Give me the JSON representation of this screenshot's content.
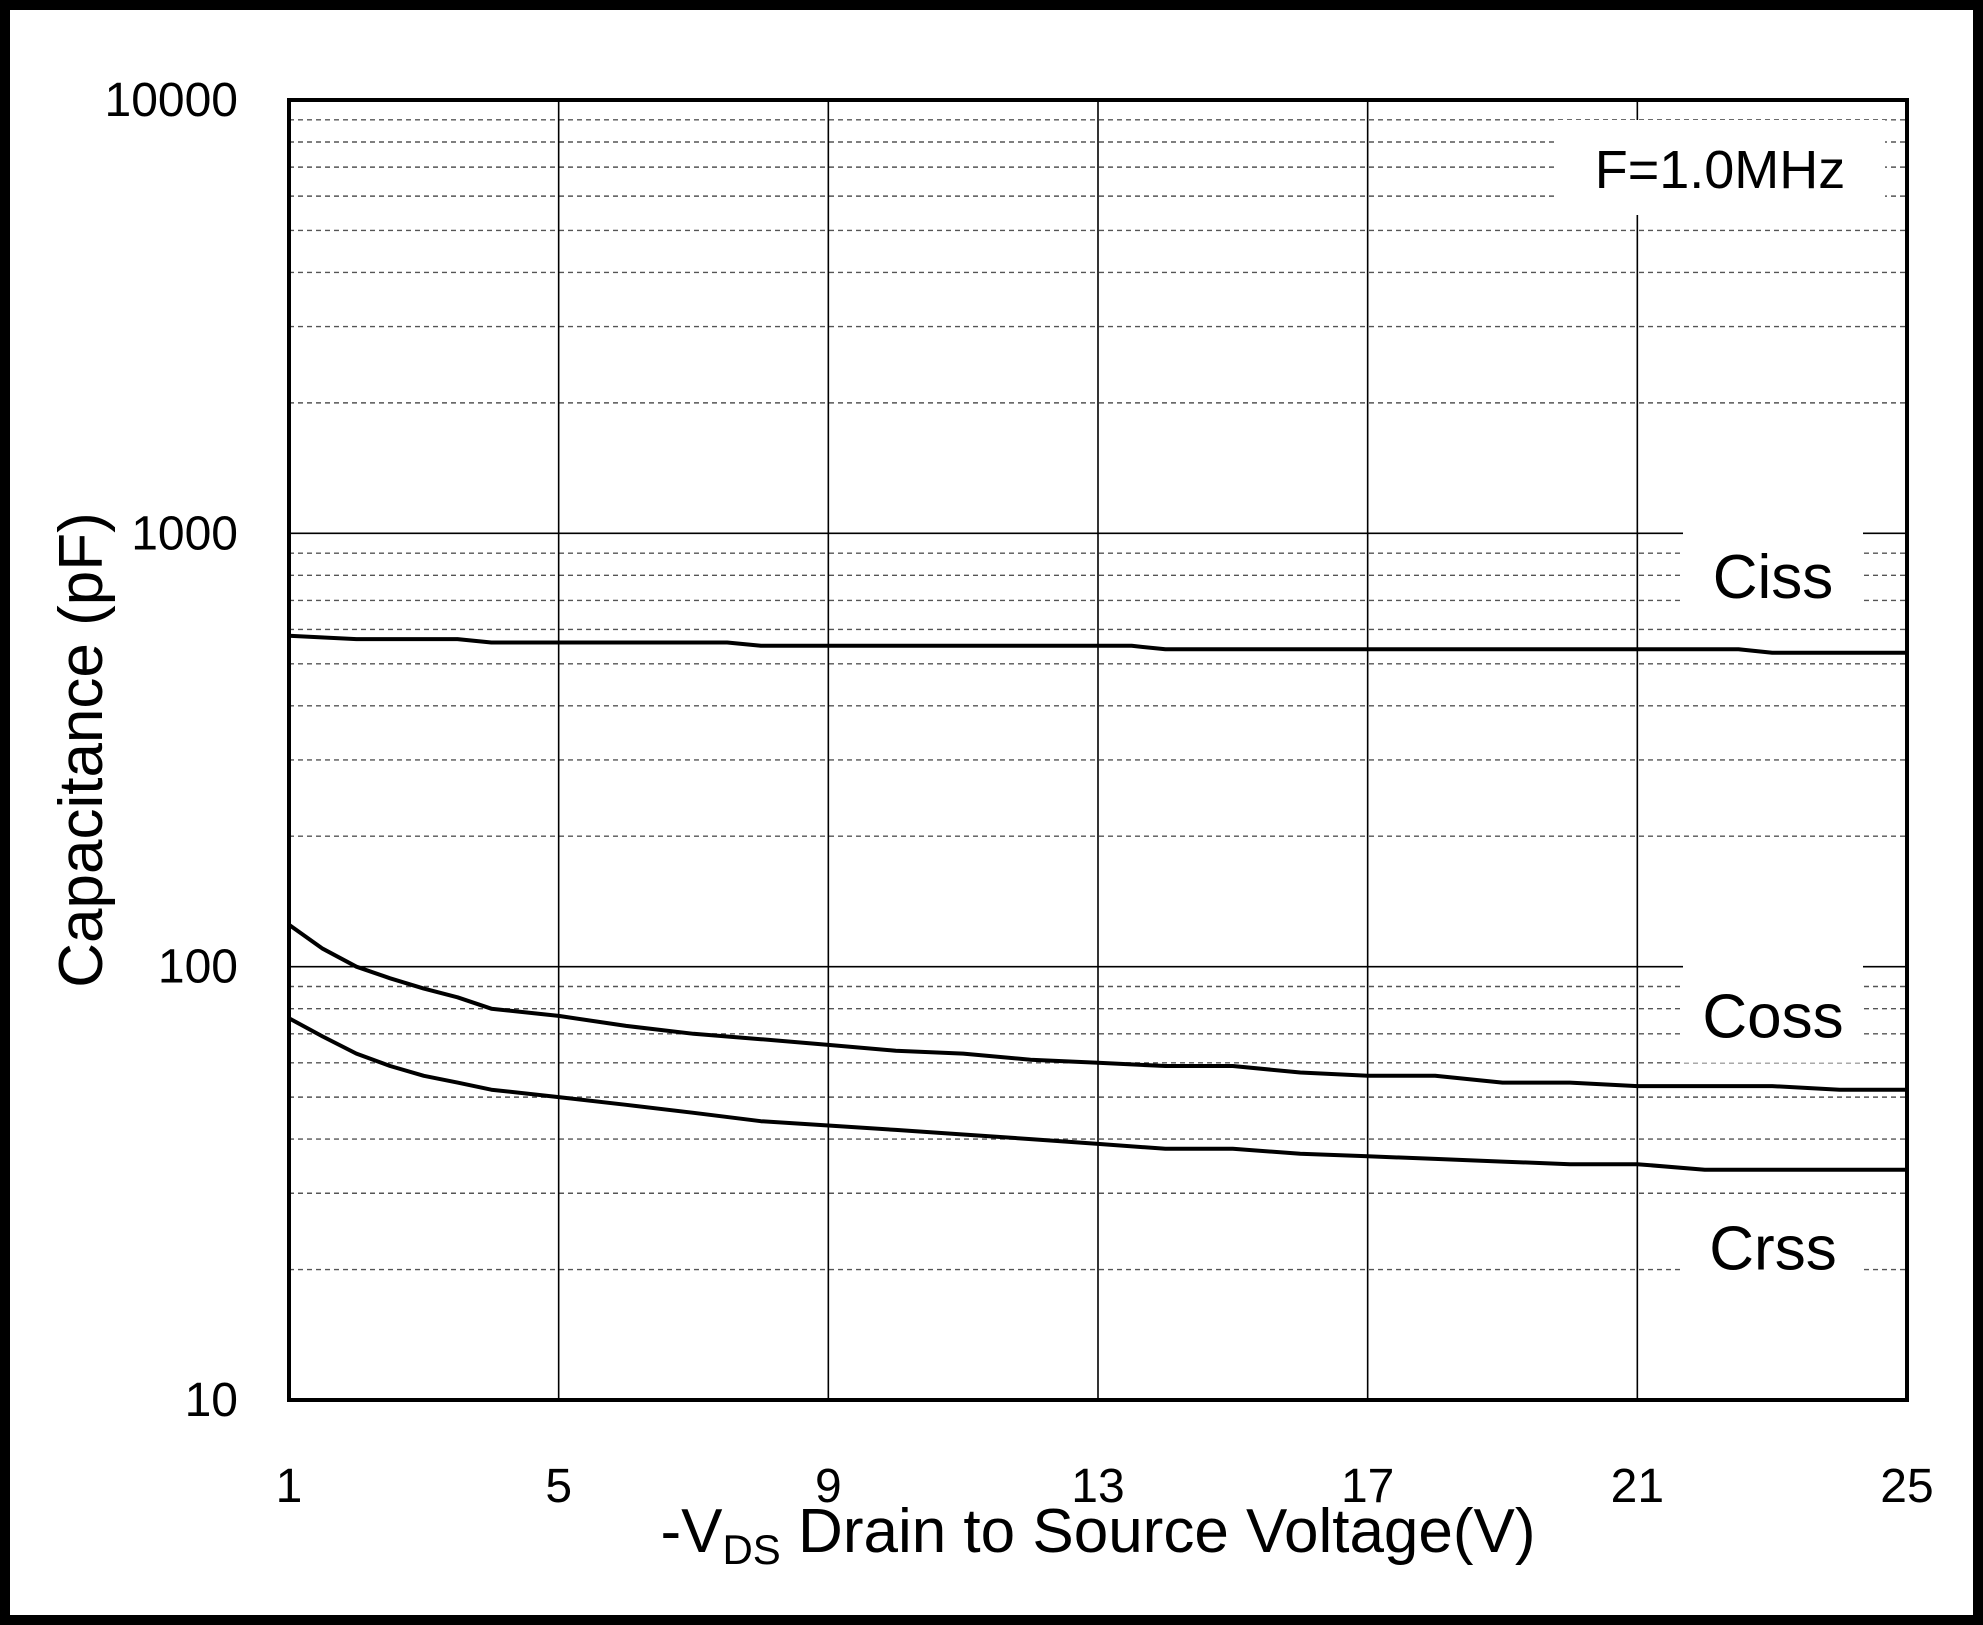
{
  "chart_data": {
    "type": "line",
    "title": "",
    "annotation": "F=1.0MHz",
    "xlabel": {
      "prefix": "-V",
      "subscript": "DS",
      "suffix": " Drain to Source Voltage(V)"
    },
    "ylabel": "Capacitance (pF)",
    "xlim": [
      1,
      25
    ],
    "ylim": [
      10,
      10000
    ],
    "yscale": "log",
    "x_ticks": [
      1,
      5,
      9,
      13,
      17,
      21,
      25
    ],
    "y_ticks": [
      10,
      100,
      1000,
      10000
    ],
    "x_tick_labels": [
      "1",
      "5",
      "9",
      "13",
      "17",
      "21",
      "25"
    ],
    "y_tick_labels": [
      "10",
      "100",
      "1000",
      "10000"
    ],
    "grid": true,
    "series": [
      {
        "name": "Ciss",
        "label_position": "right",
        "x": [
          1,
          2,
          3,
          3.5,
          4,
          5,
          6,
          7,
          7.5,
          8,
          9,
          10,
          11,
          12,
          13,
          13.5,
          14,
          15,
          16,
          17,
          18,
          19,
          20,
          21,
          22,
          22.5,
          23,
          24,
          25
        ],
        "y": [
          580,
          570,
          570,
          570,
          560,
          560,
          560,
          560,
          560,
          550,
          550,
          550,
          550,
          550,
          550,
          550,
          540,
          540,
          540,
          540,
          540,
          540,
          540,
          540,
          540,
          540,
          530,
          530,
          530
        ]
      },
      {
        "name": "Coss",
        "label_position": "right",
        "x": [
          1,
          1.5,
          2,
          2.5,
          3,
          3.5,
          4,
          5,
          6,
          7,
          8,
          9,
          10,
          11,
          12,
          13,
          14,
          15,
          16,
          17,
          18,
          19,
          20,
          21,
          22,
          23,
          24,
          25
        ],
        "y": [
          125,
          110,
          100,
          94,
          89,
          85,
          80,
          77,
          73,
          70,
          68,
          66,
          64,
          63,
          61,
          60,
          59,
          59,
          57,
          56,
          56,
          54,
          54,
          53,
          53,
          53,
          52,
          52
        ]
      },
      {
        "name": "Crss",
        "label_position": "right",
        "x": [
          1,
          1.5,
          2,
          2.5,
          3,
          3.5,
          4,
          5,
          6,
          7,
          8,
          9,
          10,
          11,
          12,
          13,
          14,
          15,
          16,
          17,
          18,
          19,
          20,
          21,
          22,
          23,
          24,
          25
        ],
        "y": [
          76,
          69,
          63,
          59,
          56,
          54,
          52,
          50,
          48,
          46,
          44,
          43,
          42,
          41,
          40,
          39,
          38,
          38,
          37,
          36.5,
          36,
          35.5,
          35,
          35,
          34,
          34,
          34,
          34
        ]
      }
    ]
  }
}
